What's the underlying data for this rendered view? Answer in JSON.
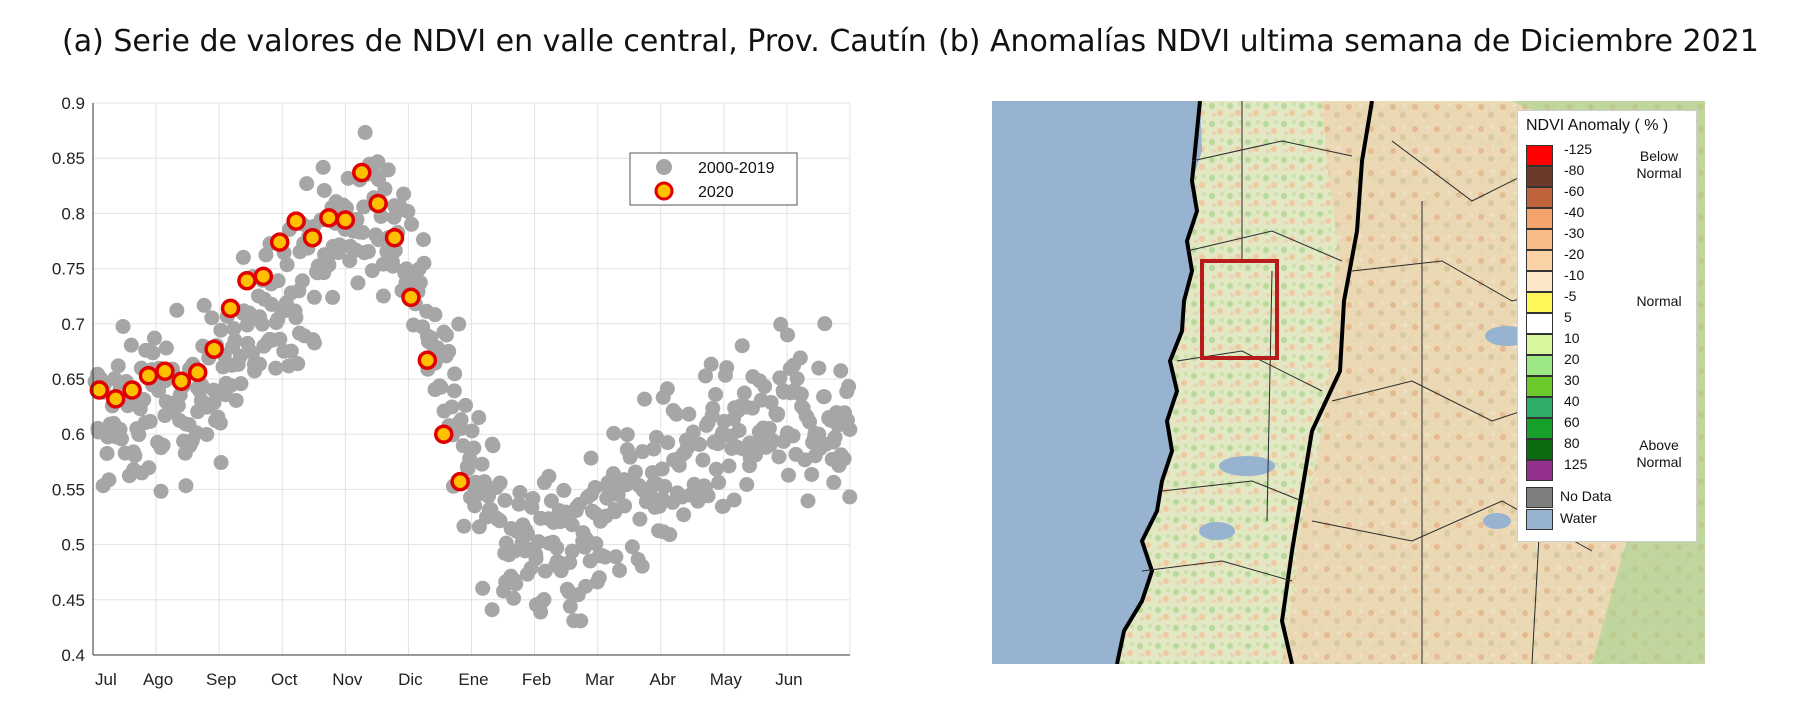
{
  "titles": {
    "a": "(a) Serie de valores de NDVI en valle central, Prov. Cautín",
    "b": "(b) Anomalías NDVI ultima semana de Diciembre 2021"
  },
  "chart_data": {
    "type": "scatter",
    "title": "(a) Serie de valores de NDVI en valle central, Prov. Cautín",
    "xlabel": "",
    "ylabel": "",
    "x_ticks": [
      "Jul",
      "Ago",
      "Sep",
      "Oct",
      "Nov",
      "Dic",
      "Ene",
      "Feb",
      "Mar",
      "Abr",
      "May",
      "Jun"
    ],
    "ylim": [
      0.4,
      0.9
    ],
    "y_ticks": [
      0.4,
      0.45,
      0.5,
      0.55,
      0.6,
      0.65,
      0.7,
      0.75,
      0.8,
      0.85,
      0.9
    ],
    "grid": true,
    "legend_position": "top-right",
    "background_series": {
      "name": "2000-2019",
      "color": "#a6a6a6",
      "anchors": [
        [
          0,
          0.61
        ],
        [
          1,
          0.625
        ],
        [
          2,
          0.645
        ],
        [
          3,
          0.73
        ],
        [
          4,
          0.79
        ],
        [
          4.6,
          0.805
        ],
        [
          5,
          0.77
        ],
        [
          5.5,
          0.66
        ],
        [
          6,
          0.57
        ],
        [
          6.5,
          0.51
        ],
        [
          7,
          0.5
        ],
        [
          7.5,
          0.495
        ],
        [
          8,
          0.52
        ],
        [
          9,
          0.565
        ],
        [
          10,
          0.585
        ],
        [
          11,
          0.615
        ],
        [
          12,
          0.61
        ]
      ],
      "spread": 0.035,
      "points_per_month": 50
    },
    "series": [
      {
        "name": "2020",
        "color": "#ffc000",
        "edge_color": "#e00000",
        "x": [
          0.1,
          0.36,
          0.62,
          0.88,
          1.14,
          1.4,
          1.66,
          1.92,
          2.18,
          2.44,
          2.7,
          2.96,
          3.22,
          3.48,
          3.74,
          4.0,
          4.26,
          4.52,
          4.78,
          5.04,
          5.3,
          5.56,
          5.82
        ],
        "y": [
          0.64,
          0.632,
          0.64,
          0.653,
          0.657,
          0.648,
          0.656,
          0.677,
          0.714,
          0.739,
          0.743,
          0.774,
          0.793,
          0.778,
          0.796,
          0.794,
          0.837,
          0.809,
          0.778,
          0.724,
          0.667,
          0.6,
          0.557
        ]
      }
    ]
  },
  "map": {
    "title": "(b) Anomalías NDVI ultima semana de Diciembre 2021",
    "legend": {
      "title": "NDVI Anomaly ( % )",
      "classes": [
        {
          "label": "-125",
          "color": "#ff0000"
        },
        {
          "label": "-80",
          "color": "#6b3a2a"
        },
        {
          "label": "-60",
          "color": "#c0643c"
        },
        {
          "label": "-40",
          "color": "#f4a46a"
        },
        {
          "label": "-30",
          "color": "#f7bb85"
        },
        {
          "label": "-20",
          "color": "#fad2a6"
        },
        {
          "label": "-10",
          "color": "#fbe6c8"
        },
        {
          "label": "-5",
          "color": "#fff65a"
        },
        {
          "label": "5",
          "color": "#ffffff"
        },
        {
          "label": "10",
          "color": "#d6f79c"
        },
        {
          "label": "20",
          "color": "#9be884"
        },
        {
          "label": "30",
          "color": "#6cc92c"
        },
        {
          "label": "40",
          "color": "#2fae6a"
        },
        {
          "label": "60",
          "color": "#17a02a"
        },
        {
          "label": "80",
          "color": "#0b6c12"
        },
        {
          "label": "125",
          "color": "#93318c"
        }
      ],
      "below": "Below Normal",
      "normal": "Normal",
      "above": "Above Normal",
      "extra": [
        {
          "label": "No Data",
          "color": "#7f7f7f"
        },
        {
          "label": "Water",
          "color": "#97b3cf"
        }
      ]
    },
    "colors": {
      "ocean": "#97b3cf",
      "land": "#dfe5c3",
      "box": "#b71c1c"
    }
  }
}
